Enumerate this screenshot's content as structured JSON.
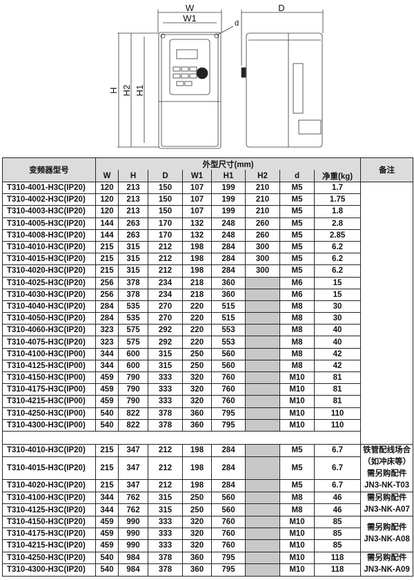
{
  "drawing": {
    "labels": {
      "W": "W",
      "W1": "W1",
      "D": "D",
      "d": "d",
      "H": "H",
      "H2": "H2",
      "H1": "H1"
    }
  },
  "table": {
    "header": {
      "model": "变频器型号",
      "group": "外型尺寸(mm)",
      "columns": [
        "W",
        "H",
        "D",
        "W1",
        "H1",
        "H2",
        "d",
        "净重(kg)"
      ],
      "notes": "备注"
    },
    "section1": [
      [
        "T310-4001-H3C(IP20)",
        "120",
        "213",
        "150",
        "107",
        "199",
        "210",
        "M5",
        "1.7"
      ],
      [
        "T310-4002-H3C(IP20)",
        "120",
        "213",
        "150",
        "107",
        "199",
        "210",
        "M5",
        "1.75"
      ],
      [
        "T310-4003-H3C(IP20)",
        "120",
        "213",
        "150",
        "107",
        "199",
        "210",
        "M5",
        "1.8"
      ],
      [
        "T310-4005-H3C(IP20)",
        "144",
        "263",
        "170",
        "132",
        "248",
        "260",
        "M5",
        "2.8"
      ],
      [
        "T310-4008-H3C(IP20)",
        "144",
        "263",
        "170",
        "132",
        "248",
        "260",
        "M5",
        "2.85"
      ],
      [
        "T310-4010-H3C(IP20)",
        "215",
        "315",
        "212",
        "198",
        "284",
        "300",
        "M5",
        "6.2"
      ],
      [
        "T310-4015-H3C(IP20)",
        "215",
        "315",
        "212",
        "198",
        "284",
        "300",
        "M5",
        "6.2"
      ],
      [
        "T310-4020-H3C(IP20)",
        "215",
        "315",
        "212",
        "198",
        "284",
        "300",
        "M5",
        "6.2"
      ],
      [
        "T310-4025-H3C(IP20)",
        "256",
        "378",
        "234",
        "218",
        "360",
        "",
        "M6",
        "15"
      ],
      [
        "T310-4030-H3C(IP20)",
        "256",
        "378",
        "234",
        "218",
        "360",
        "",
        "M6",
        "15"
      ],
      [
        "T310-4040-H3C(IP20)",
        "284",
        "535",
        "270",
        "220",
        "515",
        "",
        "M8",
        "30"
      ],
      [
        "T310-4050-H3C(IP20)",
        "284",
        "535",
        "270",
        "220",
        "515",
        "",
        "M8",
        "30"
      ],
      [
        "T310-4060-H3C(IP20)",
        "323",
        "575",
        "292",
        "220",
        "553",
        "",
        "M8",
        "40"
      ],
      [
        "T310-4075-H3C(IP20)",
        "323",
        "575",
        "292",
        "220",
        "553",
        "",
        "M8",
        "40"
      ],
      [
        "T310-4100-H3C(IP00)",
        "344",
        "600",
        "315",
        "250",
        "560",
        "",
        "M8",
        "42"
      ],
      [
        "T310-4125-H3C(IP00)",
        "344",
        "600",
        "315",
        "250",
        "560",
        "",
        "M8",
        "42"
      ],
      [
        "T310-4150-H3C(IP00)",
        "459",
        "790",
        "333",
        "320",
        "760",
        "",
        "M10",
        "81"
      ],
      [
        "T310-4175-H3C(IP00)",
        "459",
        "790",
        "333",
        "320",
        "760",
        "",
        "M10",
        "81"
      ],
      [
        "T310-4215-H3C(IP00)",
        "459",
        "790",
        "333",
        "320",
        "760",
        "",
        "M10",
        "81"
      ],
      [
        "T310-4250-H3C(IP00)",
        "540",
        "822",
        "378",
        "360",
        "795",
        "",
        "M10",
        "110"
      ],
      [
        "T310-4300-H3C(IP00)",
        "540",
        "822",
        "378",
        "360",
        "795",
        "",
        "M10",
        "110"
      ]
    ],
    "section2": [
      [
        "T310-4010-H3C(IP20)",
        "215",
        "347",
        "212",
        "198",
        "284",
        "",
        "M5",
        "6.7"
      ],
      [
        "T310-4015-H3C(IP20)",
        "215",
        "347",
        "212",
        "198",
        "284",
        "",
        "M5",
        "6.7"
      ],
      [
        "T310-4020-H3C(IP20)",
        "215",
        "347",
        "212",
        "198",
        "284",
        "",
        "M5",
        "6.7"
      ],
      [
        "T310-4100-H3C(IP20)",
        "344",
        "762",
        "315",
        "250",
        "560",
        "",
        "M8",
        "46"
      ],
      [
        "T310-4125-H3C(IP20)",
        "344",
        "762",
        "315",
        "250",
        "560",
        "",
        "M8",
        "46"
      ],
      [
        "T310-4150-H3C(IP20)",
        "459",
        "990",
        "333",
        "320",
        "760",
        "",
        "M10",
        "85"
      ],
      [
        "T310-4175-H3C(IP20)",
        "459",
        "990",
        "333",
        "320",
        "760",
        "",
        "M10",
        "85"
      ],
      [
        "T310-4215-H3C(IP20)",
        "459",
        "990",
        "333",
        "320",
        "760",
        "",
        "M10",
        "85"
      ],
      [
        "T310-4250-H3C(IP20)",
        "540",
        "984",
        "378",
        "360",
        "795",
        "",
        "M10",
        "118"
      ],
      [
        "T310-4300-H3C(IP20)",
        "540",
        "984",
        "378",
        "360",
        "795",
        "",
        "M10",
        "118"
      ]
    ],
    "section2_notes": [
      {
        "rows": 3,
        "lines": [
          "铁管配线场合",
          "（如冲床等）",
          "需另购配件",
          "JN3-NK-T03"
        ]
      },
      {
        "rows": 2,
        "lines": [
          "需另购配件",
          "JN3-NK-A07"
        ]
      },
      {
        "rows": 3,
        "lines": [
          "需另购配件",
          "JN3-NK-A08"
        ]
      },
      {
        "rows": 2,
        "lines": [
          "需另购配件",
          "JN3-NK-A09"
        ]
      }
    ],
    "colors": {
      "header_bg": "#dcdcdc",
      "empty_cell": "#c8c8c8",
      "border": "#222222"
    }
  }
}
